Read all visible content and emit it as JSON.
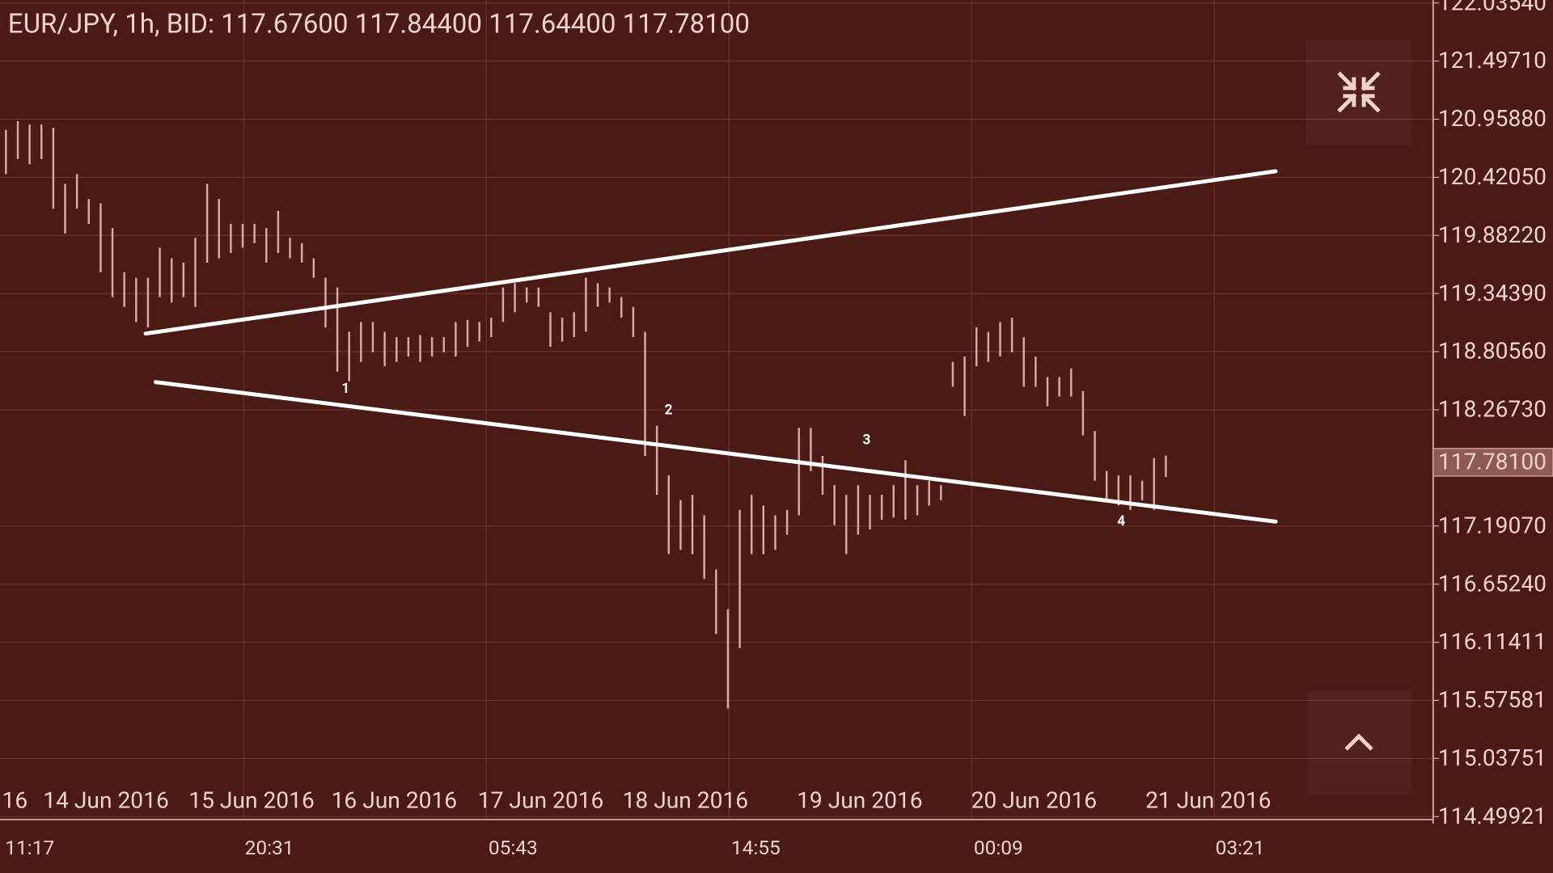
{
  "chart_data": {
    "type": "ohlc",
    "title": "EUR/JPY, 1h, BID: 117.67600 117.84400 117.64400 117.78100",
    "color": "#d9aaa2",
    "grid": true,
    "ylim": [
      114.49921,
      122.0354
    ],
    "yticks": [
      {
        "value": 122.0354,
        "label": "122.03540"
      },
      {
        "value": 121.4971,
        "label": "121.49710"
      },
      {
        "value": 120.9588,
        "label": "120.95880"
      },
      {
        "value": 120.4205,
        "label": "120.42050"
      },
      {
        "value": 119.8822,
        "label": "119.88220"
      },
      {
        "value": 119.3439,
        "label": "119.34390"
      },
      {
        "value": 118.8056,
        "label": "118.80560"
      },
      {
        "value": 118.2673,
        "label": "118.26730"
      },
      {
        "value": 117.1907,
        "label": "117.19070"
      },
      {
        "value": 116.6524,
        "label": "116.65240"
      },
      116.11411,
      115.57581,
      115.03751,
      114.49921
    ],
    "last_price": {
      "value": 117.781,
      "label": "117.78100"
    },
    "date_labels": [
      "16",
      "14 Jun 2016",
      "15 Jun 2016",
      "16 Jun 2016",
      "17 Jun 2016",
      "18 Jun 2016",
      "19 Jun 2016",
      "20 Jun 2016",
      "21 Jun 2016"
    ],
    "time_labels": [
      "11:17",
      "20:31",
      "05:43",
      "14:55",
      "00:09",
      "03:21"
    ],
    "annotations": [
      "1",
      "2",
      "3",
      "4"
    ],
    "high": [
      120.86,
      120.94,
      120.91,
      120.91,
      120.88,
      120.36,
      120.45,
      120.22,
      120.18,
      119.95,
      119.54,
      119.49,
      119.49,
      119.77,
      119.67,
      119.63,
      119.86,
      120.36,
      120.22,
      119.99,
      119.99,
      119.99,
      119.95,
      120.11,
      119.86,
      119.81,
      119.67,
      119.49,
      119.4,
      118.99,
      119.08,
      119.08,
      118.99,
      118.94,
      118.94,
      118.96,
      118.94,
      118.94,
      119.08,
      119.1,
      119.08,
      119.12,
      119.4,
      119.44,
      119.4,
      119.4,
      119.17,
      119.12,
      119.17,
      119.49,
      119.44,
      119.4,
      119.31,
      119.22,
      118.99,
      118.12,
      117.66,
      117.43,
      117.48,
      117.29,
      116.79,
      116.42,
      117.34,
      117.48,
      117.38,
      117.29,
      117.34,
      118.1,
      118.1,
      117.84,
      117.57,
      117.48,
      117.57,
      117.48,
      117.48,
      117.57,
      117.8,
      117.57,
      117.61,
      117.57,
      118.71,
      118.76,
      119.03,
      118.99,
      119.08,
      119.12,
      118.94,
      118.76,
      118.57,
      118.57,
      118.65,
      118.44,
      118.07,
      117.7,
      117.66,
      117.66,
      117.61,
      117.82,
      117.844
    ],
    "low": [
      120.45,
      120.59,
      120.54,
      120.59,
      120.13,
      119.9,
      120.13,
      119.99,
      119.54,
      119.31,
      119.22,
      119.08,
      119.03,
      119.31,
      119.26,
      119.31,
      119.22,
      119.63,
      119.67,
      119.72,
      119.77,
      119.81,
      119.63,
      119.72,
      119.67,
      119.63,
      119.49,
      119.03,
      118.62,
      118.53,
      118.71,
      118.8,
      118.67,
      118.71,
      118.76,
      118.71,
      118.76,
      118.8,
      118.76,
      118.85,
      118.9,
      118.94,
      119.08,
      119.17,
      119.26,
      119.22,
      118.85,
      118.9,
      118.94,
      118.99,
      119.22,
      119.26,
      119.12,
      118.94,
      117.84,
      117.48,
      116.93,
      116.97,
      116.93,
      116.7,
      116.19,
      115.5,
      116.06,
      116.93,
      116.93,
      116.97,
      117.11,
      117.29,
      117.7,
      117.48,
      117.2,
      116.93,
      117.11,
      117.16,
      117.25,
      117.27,
      117.25,
      117.29,
      117.38,
      117.43,
      118.48,
      118.21,
      118.67,
      118.71,
      118.76,
      118.8,
      118.48,
      118.48,
      118.3,
      118.39,
      118.39,
      118.03,
      117.61,
      117.43,
      117.38,
      117.34,
      117.43,
      117.34,
      117.644
    ]
  }
}
